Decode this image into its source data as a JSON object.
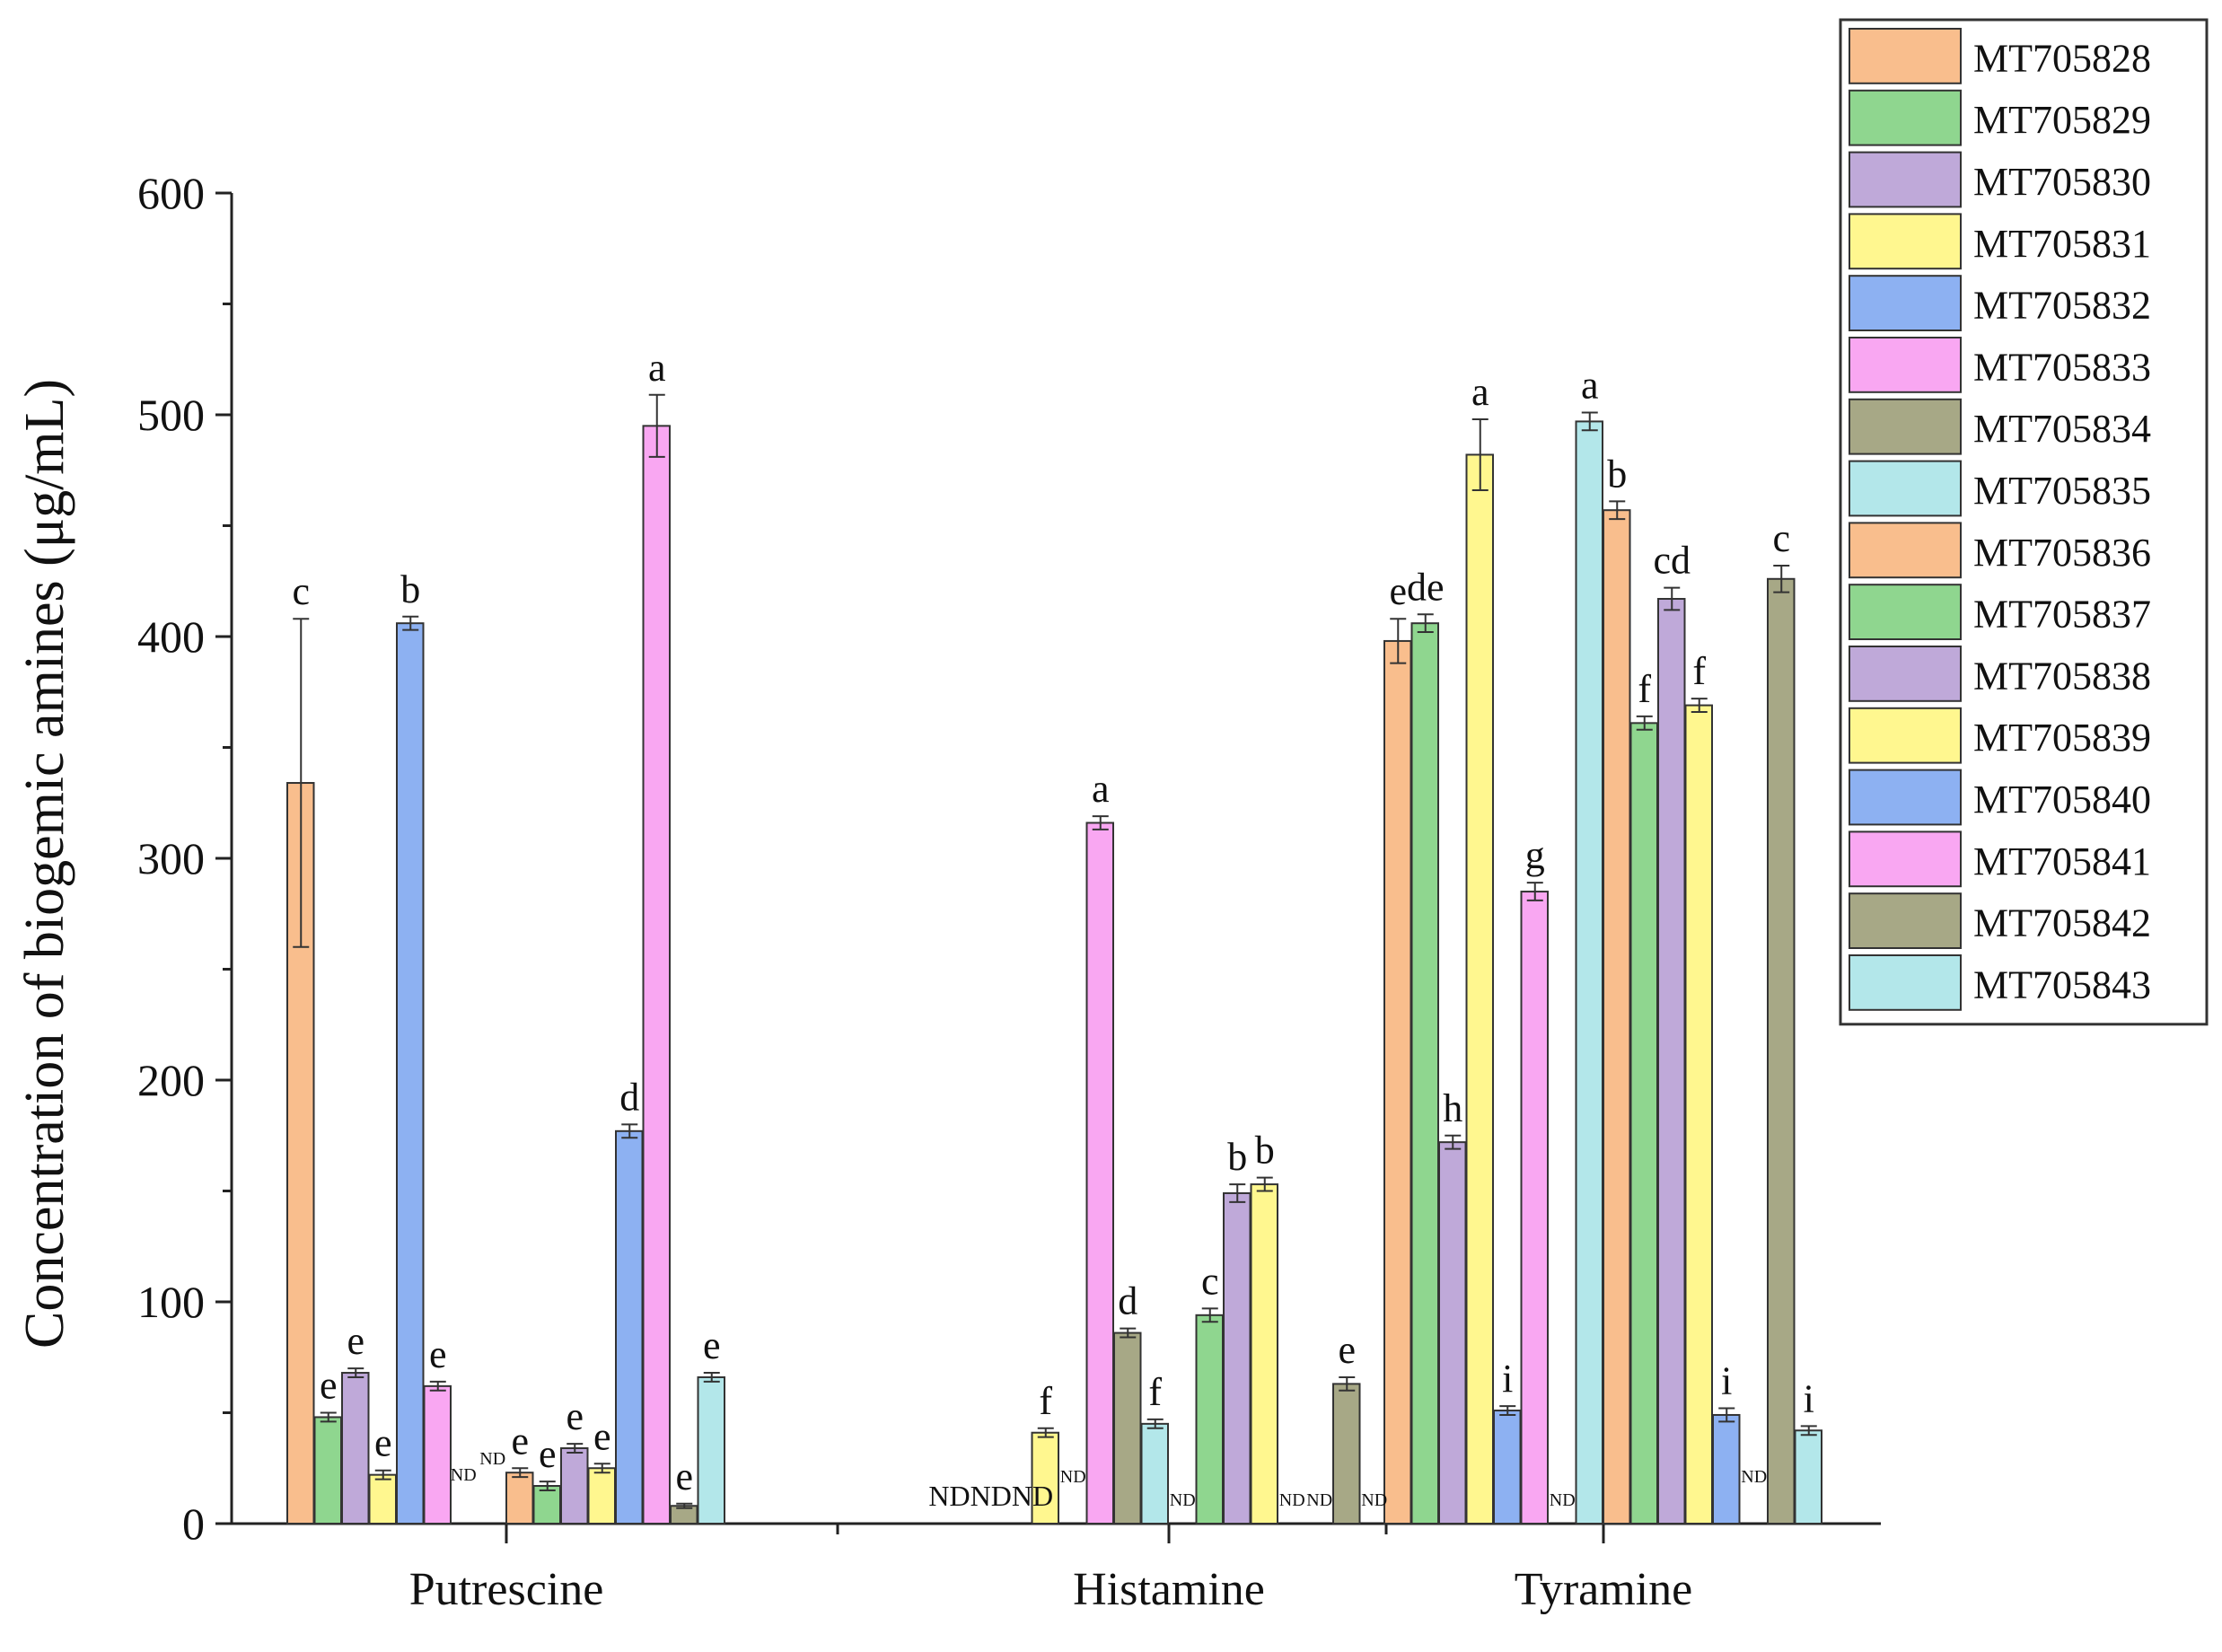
{
  "chart_data": {
    "type": "bar",
    "title": "",
    "xlabel": "",
    "ylabel": "Concentration of biogemic amines (μg/mL)",
    "ylim": [
      0,
      600
    ],
    "yticks": [
      "0",
      "100",
      "200",
      "300",
      "400",
      "500",
      "600"
    ],
    "categories": [
      "Putrescine",
      "Histamine",
      "Tyramine"
    ],
    "nd_label": "ND",
    "nd_group_label": "NDNDND",
    "series": [
      {
        "name": "MT705828",
        "color": "#F9BE8D",
        "values": [
          334,
          0,
          398
        ],
        "errors": [
          74,
          0,
          10
        ],
        "labels": [
          "c",
          "ND",
          "e"
        ]
      },
      {
        "name": "MT705829",
        "color": "#8FD68F",
        "values": [
          48,
          0,
          406
        ],
        "errors": [
          2,
          0,
          4
        ],
        "labels": [
          "e",
          "ND",
          "de"
        ]
      },
      {
        "name": "MT705830",
        "color": "#BFA9D9",
        "values": [
          68,
          0,
          172
        ],
        "errors": [
          2,
          0,
          3
        ],
        "labels": [
          "e",
          "ND",
          "h"
        ]
      },
      {
        "name": "MT705831",
        "color": "#FFF78F",
        "values": [
          22,
          41,
          482
        ],
        "errors": [
          2,
          2,
          16
        ],
        "labels": [
          "e",
          "f",
          "a"
        ]
      },
      {
        "name": "MT705832",
        "color": "#8DB1F2",
        "values": [
          406,
          0,
          51
        ],
        "errors": [
          3,
          0,
          2
        ],
        "labels": [
          "b",
          "ND",
          "i"
        ]
      },
      {
        "name": "MT705833",
        "color": "#F9A7F2",
        "values": [
          62,
          316,
          285
        ],
        "errors": [
          2,
          3,
          4
        ],
        "labels": [
          "e",
          "a",
          "g"
        ]
      },
      {
        "name": "MT705834",
        "color": "#A7A886",
        "values": [
          0,
          86,
          0
        ],
        "errors": [
          0,
          2,
          0
        ],
        "labels": [
          "ND",
          "d",
          "ND"
        ]
      },
      {
        "name": "MT705835",
        "color": "#B3E7EA",
        "values": [
          0,
          45,
          497
        ],
        "errors": [
          0,
          2,
          4
        ],
        "labels": [
          "ND",
          "f",
          "a"
        ]
      },
      {
        "name": "MT705836",
        "color": "#F9BE8D",
        "values": [
          23,
          0,
          457
        ],
        "errors": [
          2,
          0,
          4
        ],
        "labels": [
          "e",
          "ND",
          "b"
        ]
      },
      {
        "name": "MT705837",
        "color": "#8FD68F",
        "values": [
          17,
          94,
          361
        ],
        "errors": [
          2,
          3,
          3
        ],
        "labels": [
          "e",
          "c",
          "f"
        ]
      },
      {
        "name": "MT705838",
        "color": "#BFA9D9",
        "values": [
          34,
          149,
          417
        ],
        "errors": [
          2,
          4,
          5
        ],
        "labels": [
          "e",
          "b",
          "cd"
        ]
      },
      {
        "name": "MT705839",
        "color": "#FFF78F",
        "values": [
          25,
          153,
          369
        ],
        "errors": [
          2,
          3,
          3
        ],
        "labels": [
          "e",
          "b",
          "f"
        ]
      },
      {
        "name": "MT705840",
        "color": "#8DB1F2",
        "values": [
          177,
          0,
          49
        ],
        "errors": [
          3,
          0,
          3
        ],
        "labels": [
          "d",
          "ND",
          "i"
        ]
      },
      {
        "name": "MT705841",
        "color": "#F9A7F2",
        "values": [
          495,
          0,
          0
        ],
        "errors": [
          14,
          0,
          0
        ],
        "labels": [
          "a",
          "ND",
          "ND"
        ]
      },
      {
        "name": "MT705842",
        "color": "#A7A886",
        "values": [
          8,
          63,
          426
        ],
        "errors": [
          1,
          3,
          6
        ],
        "labels": [
          "e",
          "e",
          "c"
        ]
      },
      {
        "name": "MT705843",
        "color": "#B3E7EA",
        "values": [
          66,
          0,
          42
        ],
        "errors": [
          2,
          0,
          2
        ],
        "labels": [
          "e",
          "ND",
          "i"
        ]
      }
    ]
  }
}
